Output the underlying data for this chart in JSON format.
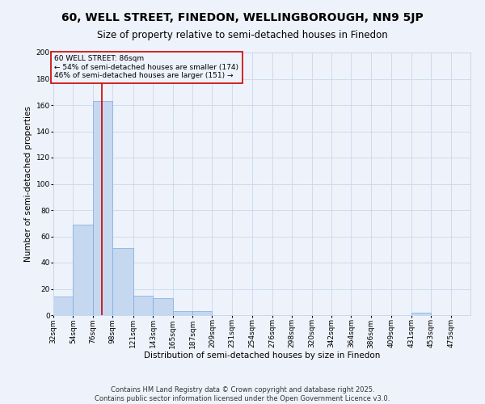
{
  "title": "60, WELL STREET, FINEDON, WELLINGBOROUGH, NN9 5JP",
  "subtitle": "Size of property relative to semi-detached houses in Finedon",
  "xlabel": "Distribution of semi-detached houses by size in Finedon",
  "ylabel": "Number of semi-detached properties",
  "bar_color": "#c5d8f0",
  "bar_edge_color": "#7aabe0",
  "grid_color": "#c8d8ec",
  "bg_color": "#eef2fa",
  "vline_color": "#cc0000",
  "vline_x": 86,
  "annotation_text": "60 WELL STREET: 86sqm\n← 54% of semi-detached houses are smaller (174)\n46% of semi-detached houses are larger (151) →",
  "annotation_box_color": "#cc0000",
  "bins": [
    32,
    54,
    76,
    98,
    121,
    143,
    165,
    187,
    209,
    231,
    254,
    276,
    298,
    320,
    342,
    364,
    386,
    409,
    431,
    453,
    475
  ],
  "bin_labels": [
    "32sqm",
    "54sqm",
    "76sqm",
    "98sqm",
    "121sqm",
    "143sqm",
    "165sqm",
    "187sqm",
    "209sqm",
    "231sqm",
    "254sqm",
    "276sqm",
    "298sqm",
    "320sqm",
    "342sqm",
    "364sqm",
    "386sqm",
    "409sqm",
    "431sqm",
    "453sqm",
    "475sqm"
  ],
  "values": [
    14,
    69,
    163,
    51,
    15,
    13,
    3,
    3,
    0,
    0,
    0,
    0,
    0,
    0,
    0,
    0,
    0,
    0,
    2,
    0,
    0
  ],
  "ylim": [
    0,
    200
  ],
  "yticks": [
    0,
    20,
    40,
    60,
    80,
    100,
    120,
    140,
    160,
    180,
    200
  ],
  "footer": "Contains HM Land Registry data © Crown copyright and database right 2025.\nContains public sector information licensed under the Open Government Licence v3.0.",
  "title_fontsize": 10,
  "subtitle_fontsize": 8.5,
  "label_fontsize": 7.5,
  "tick_fontsize": 6.5,
  "footer_fontsize": 6
}
